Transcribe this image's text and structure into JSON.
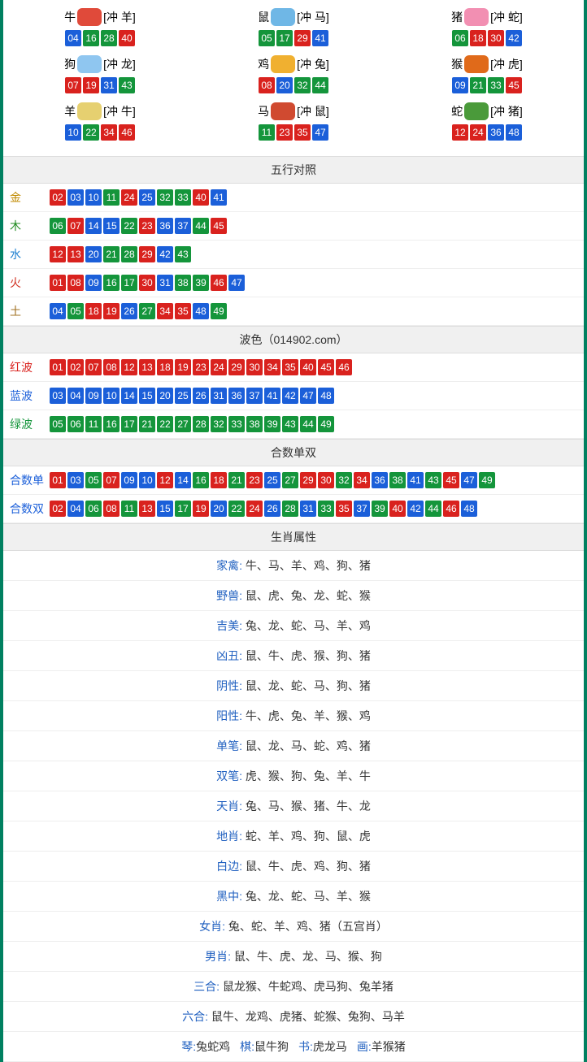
{
  "colors": {
    "red": "#d9221e",
    "blue": "#1b5fd9",
    "green": "#14953b",
    "section_bg": "#f0f0f0",
    "border": "#dddddd",
    "outer_border": "#008060",
    "label_gold": "#c08a00",
    "label_green": "#1f8a1f",
    "label_water": "#1e80d0",
    "label_fire": "#d03020",
    "label_earth": "#a07020",
    "label_red": "#d9221e",
    "label_blue": "#1b5fd9",
    "label_green2": "#14953b",
    "attr_key": "#2060c0",
    "text": "#333333"
  },
  "zodiac_grid": [
    {
      "name": "牛",
      "clash": "[冲 羊]",
      "icon_color": "#e04a3a",
      "balls": [
        {
          "n": "04",
          "c": "blue"
        },
        {
          "n": "16",
          "c": "green"
        },
        {
          "n": "28",
          "c": "green"
        },
        {
          "n": "40",
          "c": "red"
        }
      ]
    },
    {
      "name": "鼠",
      "clash": "[冲 马]",
      "icon_color": "#6fb7e6",
      "balls": [
        {
          "n": "05",
          "c": "green"
        },
        {
          "n": "17",
          "c": "green"
        },
        {
          "n": "29",
          "c": "red"
        },
        {
          "n": "41",
          "c": "blue"
        }
      ]
    },
    {
      "name": "猪",
      "clash": "[冲 蛇]",
      "icon_color": "#f28fb2",
      "balls": [
        {
          "n": "06",
          "c": "green"
        },
        {
          "n": "18",
          "c": "red"
        },
        {
          "n": "30",
          "c": "red"
        },
        {
          "n": "42",
          "c": "blue"
        }
      ]
    },
    {
      "name": "狗",
      "clash": "[冲 龙]",
      "icon_color": "#8fc6f0",
      "balls": [
        {
          "n": "07",
          "c": "red"
        },
        {
          "n": "19",
          "c": "red"
        },
        {
          "n": "31",
          "c": "blue"
        },
        {
          "n": "43",
          "c": "green"
        }
      ]
    },
    {
      "name": "鸡",
      "clash": "[冲 兔]",
      "icon_color": "#f0b030",
      "balls": [
        {
          "n": "08",
          "c": "red"
        },
        {
          "n": "20",
          "c": "blue"
        },
        {
          "n": "32",
          "c": "green"
        },
        {
          "n": "44",
          "c": "green"
        }
      ]
    },
    {
      "name": "猴",
      "clash": "[冲 虎]",
      "icon_color": "#e06a1a",
      "balls": [
        {
          "n": "09",
          "c": "blue"
        },
        {
          "n": "21",
          "c": "green"
        },
        {
          "n": "33",
          "c": "green"
        },
        {
          "n": "45",
          "c": "red"
        }
      ]
    },
    {
      "name": "羊",
      "clash": "[冲 牛]",
      "icon_color": "#e6d070",
      "balls": [
        {
          "n": "10",
          "c": "blue"
        },
        {
          "n": "22",
          "c": "green"
        },
        {
          "n": "34",
          "c": "red"
        },
        {
          "n": "46",
          "c": "red"
        }
      ]
    },
    {
      "name": "马",
      "clash": "[冲 鼠]",
      "icon_color": "#d04a30",
      "balls": [
        {
          "n": "11",
          "c": "green"
        },
        {
          "n": "23",
          "c": "red"
        },
        {
          "n": "35",
          "c": "red"
        },
        {
          "n": "47",
          "c": "blue"
        }
      ]
    },
    {
      "name": "蛇",
      "clash": "[冲 猪]",
      "icon_color": "#4a9a3a",
      "balls": [
        {
          "n": "12",
          "c": "red"
        },
        {
          "n": "24",
          "c": "red"
        },
        {
          "n": "36",
          "c": "blue"
        },
        {
          "n": "48",
          "c": "blue"
        }
      ]
    }
  ],
  "sections": {
    "wuxing_title": "五行对照",
    "bose_title": "波色（014902.com）",
    "heshu_title": "合数单双",
    "shengxiao_title": "生肖属性"
  },
  "wuxing": [
    {
      "label": "金",
      "label_color": "label_gold",
      "balls": [
        {
          "n": "02",
          "c": "red"
        },
        {
          "n": "03",
          "c": "blue"
        },
        {
          "n": "10",
          "c": "blue"
        },
        {
          "n": "11",
          "c": "green"
        },
        {
          "n": "24",
          "c": "red"
        },
        {
          "n": "25",
          "c": "blue"
        },
        {
          "n": "32",
          "c": "green"
        },
        {
          "n": "33",
          "c": "green"
        },
        {
          "n": "40",
          "c": "red"
        },
        {
          "n": "41",
          "c": "blue"
        }
      ]
    },
    {
      "label": "木",
      "label_color": "label_green",
      "balls": [
        {
          "n": "06",
          "c": "green"
        },
        {
          "n": "07",
          "c": "red"
        },
        {
          "n": "14",
          "c": "blue"
        },
        {
          "n": "15",
          "c": "blue"
        },
        {
          "n": "22",
          "c": "green"
        },
        {
          "n": "23",
          "c": "red"
        },
        {
          "n": "36",
          "c": "blue"
        },
        {
          "n": "37",
          "c": "blue"
        },
        {
          "n": "44",
          "c": "green"
        },
        {
          "n": "45",
          "c": "red"
        }
      ]
    },
    {
      "label": "水",
      "label_color": "label_water",
      "balls": [
        {
          "n": "12",
          "c": "red"
        },
        {
          "n": "13",
          "c": "red"
        },
        {
          "n": "20",
          "c": "blue"
        },
        {
          "n": "21",
          "c": "green"
        },
        {
          "n": "28",
          "c": "green"
        },
        {
          "n": "29",
          "c": "red"
        },
        {
          "n": "42",
          "c": "blue"
        },
        {
          "n": "43",
          "c": "green"
        }
      ]
    },
    {
      "label": "火",
      "label_color": "label_fire",
      "balls": [
        {
          "n": "01",
          "c": "red"
        },
        {
          "n": "08",
          "c": "red"
        },
        {
          "n": "09",
          "c": "blue"
        },
        {
          "n": "16",
          "c": "green"
        },
        {
          "n": "17",
          "c": "green"
        },
        {
          "n": "30",
          "c": "red"
        },
        {
          "n": "31",
          "c": "blue"
        },
        {
          "n": "38",
          "c": "green"
        },
        {
          "n": "39",
          "c": "green"
        },
        {
          "n": "46",
          "c": "red"
        },
        {
          "n": "47",
          "c": "blue"
        }
      ]
    },
    {
      "label": "土",
      "label_color": "label_earth",
      "balls": [
        {
          "n": "04",
          "c": "blue"
        },
        {
          "n": "05",
          "c": "green"
        },
        {
          "n": "18",
          "c": "red"
        },
        {
          "n": "19",
          "c": "red"
        },
        {
          "n": "26",
          "c": "blue"
        },
        {
          "n": "27",
          "c": "green"
        },
        {
          "n": "34",
          "c": "red"
        },
        {
          "n": "35",
          "c": "red"
        },
        {
          "n": "48",
          "c": "blue"
        },
        {
          "n": "49",
          "c": "green"
        }
      ]
    }
  ],
  "bose": [
    {
      "label": "红波",
      "label_color": "label_red",
      "balls": [
        {
          "n": "01",
          "c": "red"
        },
        {
          "n": "02",
          "c": "red"
        },
        {
          "n": "07",
          "c": "red"
        },
        {
          "n": "08",
          "c": "red"
        },
        {
          "n": "12",
          "c": "red"
        },
        {
          "n": "13",
          "c": "red"
        },
        {
          "n": "18",
          "c": "red"
        },
        {
          "n": "19",
          "c": "red"
        },
        {
          "n": "23",
          "c": "red"
        },
        {
          "n": "24",
          "c": "red"
        },
        {
          "n": "29",
          "c": "red"
        },
        {
          "n": "30",
          "c": "red"
        },
        {
          "n": "34",
          "c": "red"
        },
        {
          "n": "35",
          "c": "red"
        },
        {
          "n": "40",
          "c": "red"
        },
        {
          "n": "45",
          "c": "red"
        },
        {
          "n": "46",
          "c": "red"
        }
      ]
    },
    {
      "label": "蓝波",
      "label_color": "label_blue",
      "balls": [
        {
          "n": "03",
          "c": "blue"
        },
        {
          "n": "04",
          "c": "blue"
        },
        {
          "n": "09",
          "c": "blue"
        },
        {
          "n": "10",
          "c": "blue"
        },
        {
          "n": "14",
          "c": "blue"
        },
        {
          "n": "15",
          "c": "blue"
        },
        {
          "n": "20",
          "c": "blue"
        },
        {
          "n": "25",
          "c": "blue"
        },
        {
          "n": "26",
          "c": "blue"
        },
        {
          "n": "31",
          "c": "blue"
        },
        {
          "n": "36",
          "c": "blue"
        },
        {
          "n": "37",
          "c": "blue"
        },
        {
          "n": "41",
          "c": "blue"
        },
        {
          "n": "42",
          "c": "blue"
        },
        {
          "n": "47",
          "c": "blue"
        },
        {
          "n": "48",
          "c": "blue"
        }
      ]
    },
    {
      "label": "绿波",
      "label_color": "label_green2",
      "balls": [
        {
          "n": "05",
          "c": "green"
        },
        {
          "n": "06",
          "c": "green"
        },
        {
          "n": "11",
          "c": "green"
        },
        {
          "n": "16",
          "c": "green"
        },
        {
          "n": "17",
          "c": "green"
        },
        {
          "n": "21",
          "c": "green"
        },
        {
          "n": "22",
          "c": "green"
        },
        {
          "n": "27",
          "c": "green"
        },
        {
          "n": "28",
          "c": "green"
        },
        {
          "n": "32",
          "c": "green"
        },
        {
          "n": "33",
          "c": "green"
        },
        {
          "n": "38",
          "c": "green"
        },
        {
          "n": "39",
          "c": "green"
        },
        {
          "n": "43",
          "c": "green"
        },
        {
          "n": "44",
          "c": "green"
        },
        {
          "n": "49",
          "c": "green"
        }
      ]
    }
  ],
  "heshu": [
    {
      "label": "合数单",
      "label_color": "label_blue",
      "balls": [
        {
          "n": "01",
          "c": "red"
        },
        {
          "n": "03",
          "c": "blue"
        },
        {
          "n": "05",
          "c": "green"
        },
        {
          "n": "07",
          "c": "red"
        },
        {
          "n": "09",
          "c": "blue"
        },
        {
          "n": "10",
          "c": "blue"
        },
        {
          "n": "12",
          "c": "red"
        },
        {
          "n": "14",
          "c": "blue"
        },
        {
          "n": "16",
          "c": "green"
        },
        {
          "n": "18",
          "c": "red"
        },
        {
          "n": "21",
          "c": "green"
        },
        {
          "n": "23",
          "c": "red"
        },
        {
          "n": "25",
          "c": "blue"
        },
        {
          "n": "27",
          "c": "green"
        },
        {
          "n": "29",
          "c": "red"
        },
        {
          "n": "30",
          "c": "red"
        },
        {
          "n": "32",
          "c": "green"
        },
        {
          "n": "34",
          "c": "red"
        },
        {
          "n": "36",
          "c": "blue"
        },
        {
          "n": "38",
          "c": "green"
        },
        {
          "n": "41",
          "c": "blue"
        },
        {
          "n": "43",
          "c": "green"
        },
        {
          "n": "45",
          "c": "red"
        },
        {
          "n": "47",
          "c": "blue"
        },
        {
          "n": "49",
          "c": "green"
        }
      ]
    },
    {
      "label": "合数双",
      "label_color": "label_blue",
      "balls": [
        {
          "n": "02",
          "c": "red"
        },
        {
          "n": "04",
          "c": "blue"
        },
        {
          "n": "06",
          "c": "green"
        },
        {
          "n": "08",
          "c": "red"
        },
        {
          "n": "11",
          "c": "green"
        },
        {
          "n": "13",
          "c": "red"
        },
        {
          "n": "15",
          "c": "blue"
        },
        {
          "n": "17",
          "c": "green"
        },
        {
          "n": "19",
          "c": "red"
        },
        {
          "n": "20",
          "c": "blue"
        },
        {
          "n": "22",
          "c": "green"
        },
        {
          "n": "24",
          "c": "red"
        },
        {
          "n": "26",
          "c": "blue"
        },
        {
          "n": "28",
          "c": "green"
        },
        {
          "n": "31",
          "c": "blue"
        },
        {
          "n": "33",
          "c": "green"
        },
        {
          "n": "35",
          "c": "red"
        },
        {
          "n": "37",
          "c": "blue"
        },
        {
          "n": "39",
          "c": "green"
        },
        {
          "n": "40",
          "c": "red"
        },
        {
          "n": "42",
          "c": "blue"
        },
        {
          "n": "44",
          "c": "green"
        },
        {
          "n": "46",
          "c": "red"
        },
        {
          "n": "48",
          "c": "blue"
        }
      ]
    }
  ],
  "shengxiao_attrs": [
    {
      "k": "家禽",
      "v": "牛、马、羊、鸡、狗、猪"
    },
    {
      "k": "野兽",
      "v": "鼠、虎、兔、龙、蛇、猴"
    },
    {
      "k": "吉美",
      "v": "兔、龙、蛇、马、羊、鸡"
    },
    {
      "k": "凶丑",
      "v": "鼠、牛、虎、猴、狗、猪"
    },
    {
      "k": "阴性",
      "v": "鼠、龙、蛇、马、狗、猪"
    },
    {
      "k": "阳性",
      "v": "牛、虎、兔、羊、猴、鸡"
    },
    {
      "k": "单笔",
      "v": "鼠、龙、马、蛇、鸡、猪"
    },
    {
      "k": "双笔",
      "v": "虎、猴、狗、兔、羊、牛"
    },
    {
      "k": "天肖",
      "v": "兔、马、猴、猪、牛、龙"
    },
    {
      "k": "地肖",
      "v": "蛇、羊、鸡、狗、鼠、虎"
    },
    {
      "k": "白边",
      "v": "鼠、牛、虎、鸡、狗、猪"
    },
    {
      "k": "黑中",
      "v": "兔、龙、蛇、马、羊、猴"
    },
    {
      "k": "女肖",
      "v": "兔、蛇、羊、鸡、猪（五宫肖）"
    },
    {
      "k": "男肖",
      "v": "鼠、牛、虎、龙、马、猴、狗"
    },
    {
      "k": "三合",
      "v": "鼠龙猴、牛蛇鸡、虎马狗、兔羊猪"
    },
    {
      "k": "六合",
      "v": "鼠牛、龙鸡、虎猪、蛇猴、兔狗、马羊"
    }
  ],
  "footer_row": {
    "items": [
      {
        "k": "琴",
        "v": "兔蛇鸡"
      },
      {
        "k": "棋",
        "v": "鼠牛狗"
      },
      {
        "k": "书",
        "v": "虎龙马"
      },
      {
        "k": "画",
        "v": "羊猴猪"
      }
    ]
  }
}
